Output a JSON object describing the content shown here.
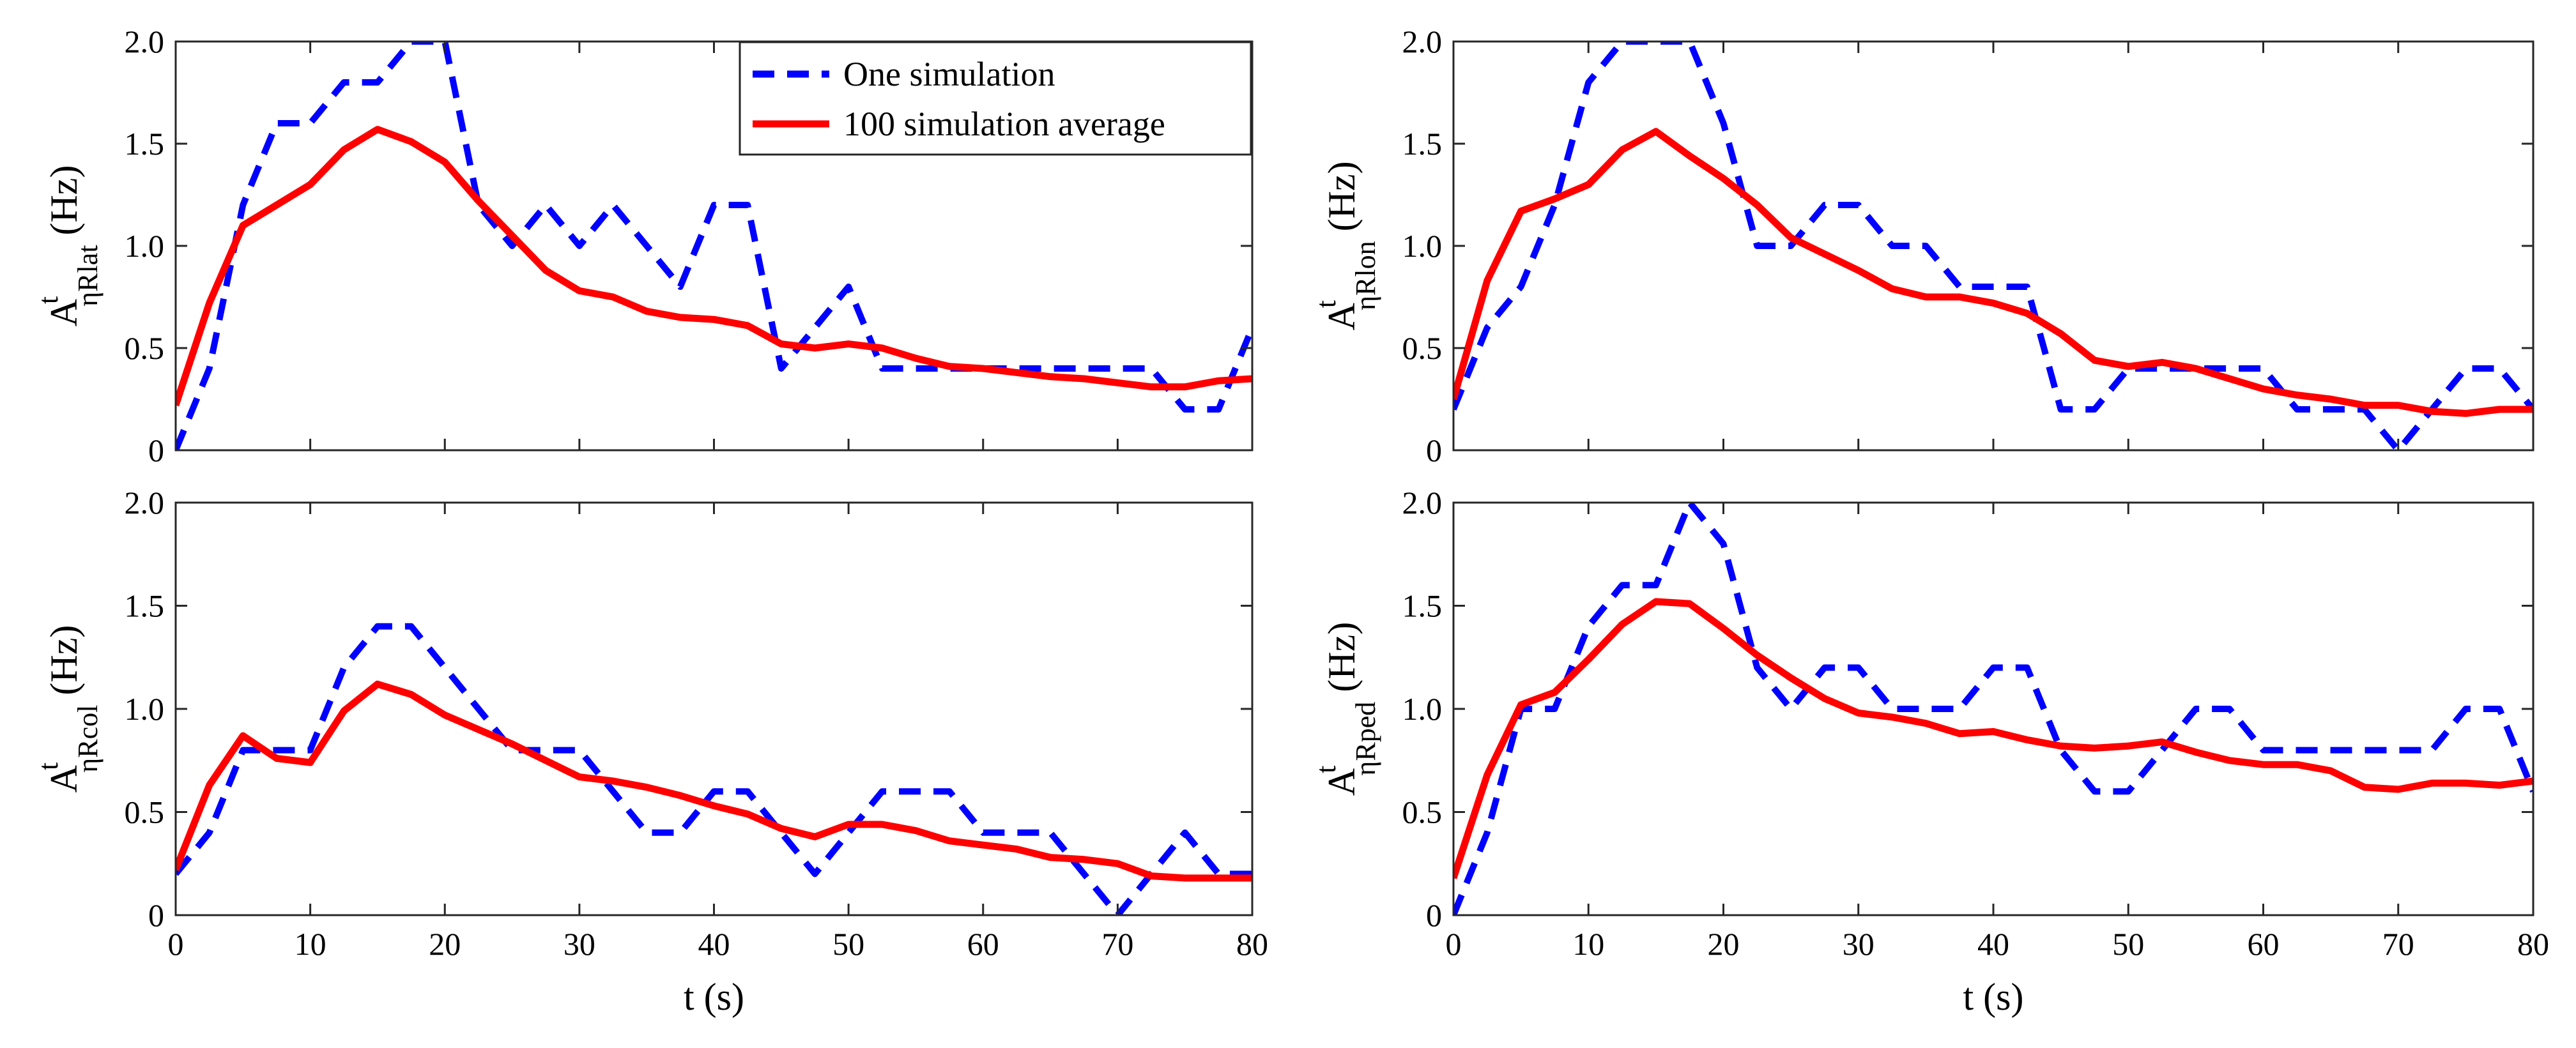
{
  "chart_data": [
    {
      "type": "line",
      "panel": "top-left",
      "ylabel": {
        "base": "A",
        "sup": "t",
        "sub": "ηRlat",
        "unit": " (Hz)"
      },
      "xlabel": "",
      "xlim": [
        0,
        80
      ],
      "ylim": [
        0,
        2.0
      ],
      "xticks": [
        0,
        10,
        20,
        30,
        40,
        50,
        60,
        70,
        80
      ],
      "xticklabels": [],
      "yticks": [
        0,
        0.5,
        1.0,
        1.5,
        2.0
      ],
      "yticklabels": [
        "0",
        "0.5",
        "1.0",
        "1.5",
        "2.0"
      ],
      "legend": {
        "placement": "top-center",
        "entries": [
          "One simulation",
          "100 simulation average"
        ]
      },
      "series": [
        {
          "name": "One simulation",
          "color": "#0000ff",
          "style": "dashed",
          "x": [
            0,
            2.5,
            5,
            7.5,
            10,
            12.5,
            15,
            17.5,
            20,
            22.5,
            25,
            27.5,
            30,
            32.5,
            35,
            37.5,
            40,
            42.5,
            45,
            47.5,
            50,
            52.5,
            55,
            57.5,
            60,
            62.5,
            65,
            67.5,
            70,
            72.5,
            75,
            77.5,
            80
          ],
          "y": [
            0,
            0.4,
            1.2,
            1.6,
            1.6,
            1.8,
            1.8,
            2.0,
            2.0,
            1.2,
            1.0,
            1.2,
            1.0,
            1.2,
            1.0,
            0.8,
            1.2,
            1.2,
            0.4,
            0.6,
            0.8,
            0.4,
            0.4,
            0.4,
            0.4,
            0.4,
            0.4,
            0.4,
            0.4,
            0.4,
            0.2,
            0.2,
            0.6
          ]
        },
        {
          "name": "100 simulation average",
          "color": "#ff0000",
          "style": "solid",
          "x": [
            0,
            2.5,
            5,
            7.5,
            10,
            12.5,
            15,
            17.5,
            20,
            22.5,
            25,
            27.5,
            30,
            32.5,
            35,
            37.5,
            40,
            42.5,
            45,
            47.5,
            50,
            52.5,
            55,
            57.5,
            60,
            62.5,
            65,
            67.5,
            70,
            72.5,
            75,
            77.5,
            80
          ],
          "y": [
            0.22,
            0.72,
            1.1,
            1.2,
            1.3,
            1.47,
            1.57,
            1.51,
            1.41,
            1.22,
            1.05,
            0.88,
            0.78,
            0.75,
            0.68,
            0.65,
            0.64,
            0.61,
            0.52,
            0.5,
            0.52,
            0.5,
            0.45,
            0.41,
            0.4,
            0.38,
            0.36,
            0.35,
            0.33,
            0.31,
            0.31,
            0.34,
            0.35
          ]
        }
      ]
    },
    {
      "type": "line",
      "panel": "top-right",
      "ylabel": {
        "base": "A",
        "sup": "t",
        "sub": "ηRlon",
        "unit": " (Hz)"
      },
      "xlabel": "",
      "xlim": [
        0,
        80
      ],
      "ylim": [
        0,
        2.0
      ],
      "xticks": [
        0,
        10,
        20,
        30,
        40,
        50,
        60,
        70,
        80
      ],
      "xticklabels": [],
      "yticks": [
        0,
        0.5,
        1.0,
        1.5,
        2.0
      ],
      "yticklabels": [
        "0",
        "0.5",
        "1.0",
        "1.5",
        "2.0"
      ],
      "series": [
        {
          "name": "One simulation",
          "color": "#0000ff",
          "style": "dashed",
          "x": [
            0,
            2.5,
            5,
            7.5,
            10,
            12.5,
            15,
            17.5,
            20,
            22.5,
            25,
            27.5,
            30,
            32.5,
            35,
            37.5,
            40,
            42.5,
            45,
            47.5,
            50,
            52.5,
            55,
            57.5,
            60,
            62.5,
            65,
            67.5,
            70,
            72.5,
            75,
            77.5,
            80
          ],
          "y": [
            0.2,
            0.6,
            0.8,
            1.2,
            1.8,
            2.0,
            2.0,
            2.0,
            1.6,
            1.0,
            1.0,
            1.2,
            1.2,
            1.0,
            1.0,
            0.8,
            0.8,
            0.8,
            0.2,
            0.2,
            0.4,
            0.4,
            0.4,
            0.4,
            0.4,
            0.2,
            0.2,
            0.2,
            0.0,
            0.2,
            0.4,
            0.4,
            0.2
          ]
        },
        {
          "name": "100 simulation average",
          "color": "#ff0000",
          "style": "solid",
          "x": [
            0,
            2.5,
            5,
            7.5,
            10,
            12.5,
            15,
            17.5,
            20,
            22.5,
            25,
            27.5,
            30,
            32.5,
            35,
            37.5,
            40,
            42.5,
            45,
            47.5,
            50,
            52.5,
            55,
            57.5,
            60,
            62.5,
            65,
            67.5,
            70,
            72.5,
            75,
            77.5,
            80
          ],
          "y": [
            0.25,
            0.83,
            1.17,
            1.23,
            1.3,
            1.47,
            1.56,
            1.44,
            1.33,
            1.2,
            1.04,
            0.96,
            0.88,
            0.79,
            0.75,
            0.75,
            0.72,
            0.67,
            0.57,
            0.44,
            0.41,
            0.43,
            0.4,
            0.35,
            0.3,
            0.27,
            0.25,
            0.22,
            0.22,
            0.19,
            0.18,
            0.2,
            0.2
          ]
        }
      ]
    },
    {
      "type": "line",
      "panel": "bottom-left",
      "ylabel": {
        "base": "A",
        "sup": "t",
        "sub": "ηRcol",
        "unit": " (Hz)"
      },
      "xlabel": "t (s)",
      "xlim": [
        0,
        80
      ],
      "ylim": [
        0,
        2.0
      ],
      "xticks": [
        0,
        10,
        20,
        30,
        40,
        50,
        60,
        70,
        80
      ],
      "xticklabels": [
        "0",
        "10",
        "20",
        "30",
        "40",
        "50",
        "60",
        "70",
        "80"
      ],
      "yticks": [
        0,
        0.5,
        1.0,
        1.5,
        2.0
      ],
      "yticklabels": [
        "0",
        "0.5",
        "1.0",
        "1.5",
        "2.0"
      ],
      "series": [
        {
          "name": "One simulation",
          "color": "#0000ff",
          "style": "dashed",
          "x": [
            0,
            2.5,
            5,
            7.5,
            10,
            12.5,
            15,
            17.5,
            20,
            22.5,
            25,
            27.5,
            30,
            32.5,
            35,
            37.5,
            40,
            42.5,
            45,
            47.5,
            50,
            52.5,
            55,
            57.5,
            60,
            62.5,
            65,
            67.5,
            70,
            72.5,
            75,
            77.5,
            80
          ],
          "y": [
            0.2,
            0.4,
            0.8,
            0.8,
            0.8,
            1.2,
            1.4,
            1.4,
            1.2,
            1.0,
            0.8,
            0.8,
            0.8,
            0.6,
            0.4,
            0.4,
            0.6,
            0.6,
            0.4,
            0.2,
            0.4,
            0.6,
            0.6,
            0.6,
            0.4,
            0.4,
            0.4,
            0.2,
            0.0,
            0.2,
            0.4,
            0.2,
            0.2
          ]
        },
        {
          "name": "100 simulation average",
          "color": "#ff0000",
          "style": "solid",
          "x": [
            0,
            2.5,
            5,
            7.5,
            10,
            12.5,
            15,
            17.5,
            20,
            22.5,
            25,
            27.5,
            30,
            32.5,
            35,
            37.5,
            40,
            42.5,
            45,
            47.5,
            50,
            52.5,
            55,
            57.5,
            60,
            62.5,
            65,
            67.5,
            70,
            72.5,
            75,
            77.5,
            80
          ],
          "y": [
            0.22,
            0.63,
            0.87,
            0.76,
            0.74,
            0.99,
            1.12,
            1.07,
            0.97,
            0.9,
            0.83,
            0.75,
            0.67,
            0.65,
            0.62,
            0.58,
            0.53,
            0.49,
            0.42,
            0.38,
            0.44,
            0.44,
            0.41,
            0.36,
            0.34,
            0.32,
            0.28,
            0.27,
            0.25,
            0.19,
            0.18,
            0.18,
            0.18
          ]
        }
      ]
    },
    {
      "type": "line",
      "panel": "bottom-right",
      "ylabel": {
        "base": "A",
        "sup": "t",
        "sub": "ηRped",
        "unit": " (Hz)"
      },
      "xlabel": "t (s)",
      "xlim": [
        0,
        80
      ],
      "ylim": [
        0,
        2.0
      ],
      "xticks": [
        0,
        10,
        20,
        30,
        40,
        50,
        60,
        70,
        80
      ],
      "xticklabels": [
        "0",
        "10",
        "20",
        "30",
        "40",
        "50",
        "60",
        "70",
        "80"
      ],
      "yticks": [
        0,
        0.5,
        1.0,
        1.5,
        2.0
      ],
      "yticklabels": [
        "0",
        "0.5",
        "1.0",
        "1.5",
        "2.0"
      ],
      "series": [
        {
          "name": "One simulation",
          "color": "#0000ff",
          "style": "dashed",
          "x": [
            0,
            2.5,
            5,
            7.5,
            10,
            12.5,
            15,
            17.5,
            20,
            22.5,
            25,
            27.5,
            30,
            32.5,
            35,
            37.5,
            40,
            42.5,
            45,
            47.5,
            50,
            52.5,
            55,
            57.5,
            60,
            62.5,
            65,
            67.5,
            70,
            72.5,
            75,
            77.5,
            80
          ],
          "y": [
            0,
            0.4,
            1.0,
            1.0,
            1.4,
            1.6,
            1.6,
            2.0,
            1.8,
            1.2,
            1.0,
            1.2,
            1.2,
            1.0,
            1.0,
            1.0,
            1.2,
            1.2,
            0.8,
            0.6,
            0.6,
            0.8,
            1.0,
            1.0,
            0.8,
            0.8,
            0.8,
            0.8,
            0.8,
            0.8,
            1.0,
            1.0,
            0.6
          ]
        },
        {
          "name": "100 simulation average",
          "color": "#ff0000",
          "style": "solid",
          "x": [
            0,
            2.5,
            5,
            7.5,
            10,
            12.5,
            15,
            17.5,
            20,
            22.5,
            25,
            27.5,
            30,
            32.5,
            35,
            37.5,
            40,
            42.5,
            45,
            47.5,
            50,
            52.5,
            55,
            57.5,
            60,
            62.5,
            65,
            67.5,
            70,
            72.5,
            75,
            77.5,
            80
          ],
          "y": [
            0.18,
            0.68,
            1.02,
            1.08,
            1.24,
            1.41,
            1.52,
            1.51,
            1.39,
            1.26,
            1.15,
            1.05,
            0.98,
            0.96,
            0.93,
            0.88,
            0.89,
            0.85,
            0.82,
            0.81,
            0.82,
            0.84,
            0.79,
            0.75,
            0.73,
            0.73,
            0.7,
            0.62,
            0.61,
            0.64,
            0.64,
            0.63,
            0.65
          ]
        }
      ]
    }
  ]
}
